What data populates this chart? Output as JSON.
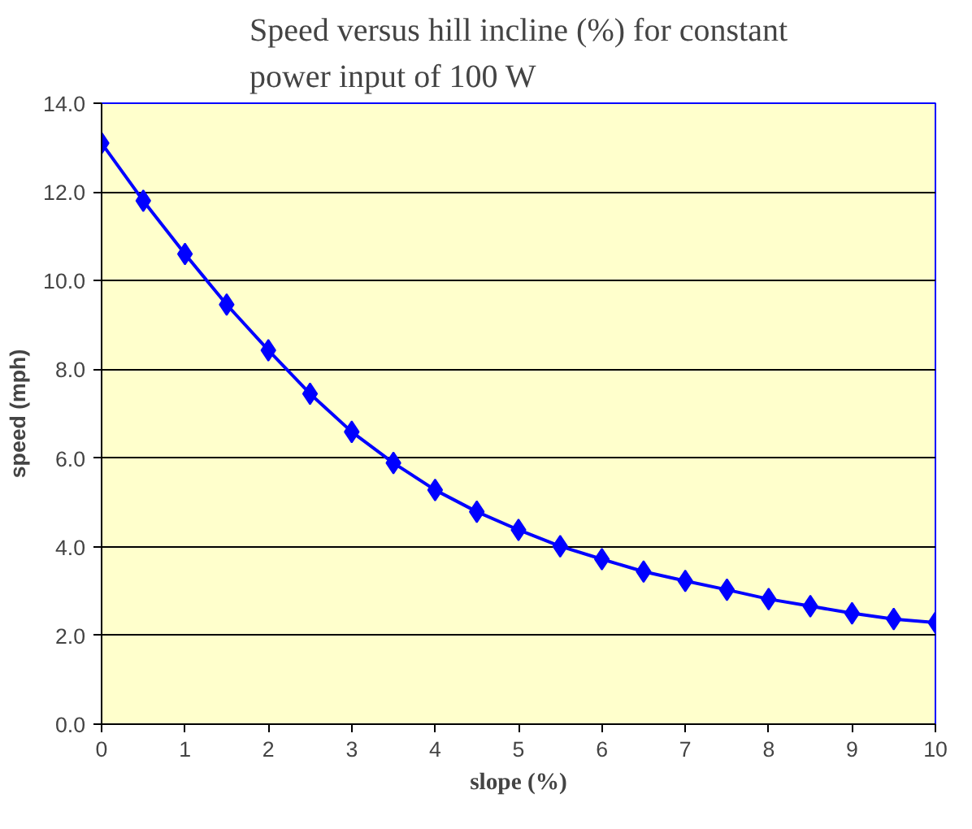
{
  "chart_data": {
    "type": "line",
    "title": "Speed versus hill incline (%) for constant power input of 100 W",
    "xlabel": "slope (%)",
    "ylabel": "speed (mph)",
    "x": [
      0,
      0.5,
      1,
      1.5,
      2,
      2.5,
      3,
      3.5,
      4,
      4.5,
      5,
      5.5,
      6,
      6.5,
      7,
      7.5,
      8,
      8.5,
      9,
      9.5,
      10
    ],
    "series": [
      {
        "color": "#0000ff",
        "values": [
          13.1,
          11.8,
          10.6,
          9.46,
          8.43,
          7.45,
          6.59,
          5.89,
          5.28,
          4.79,
          4.38,
          4.01,
          3.72,
          3.44,
          3.23,
          3.03,
          2.82,
          2.66,
          2.5,
          2.37,
          2.29
        ]
      }
    ],
    "xlim": [
      0,
      10
    ],
    "xticks": [
      0,
      1,
      2,
      3,
      4,
      5,
      6,
      7,
      8,
      9,
      10
    ],
    "ylim": [
      0,
      14
    ],
    "yticks": [
      {
        "value": 0,
        "label": "0.0"
      },
      {
        "value": 2,
        "label": "2.0"
      },
      {
        "value": 4,
        "label": "4.0"
      },
      {
        "value": 6,
        "label": "6.0"
      },
      {
        "value": 8,
        "label": "8.0"
      },
      {
        "value": 10,
        "label": "10.0"
      },
      {
        "value": 12,
        "label": "12.0"
      },
      {
        "value": 14,
        "label": "14.0"
      }
    ],
    "grid": "y",
    "marker": "diamond",
    "line_style": "solid"
  }
}
